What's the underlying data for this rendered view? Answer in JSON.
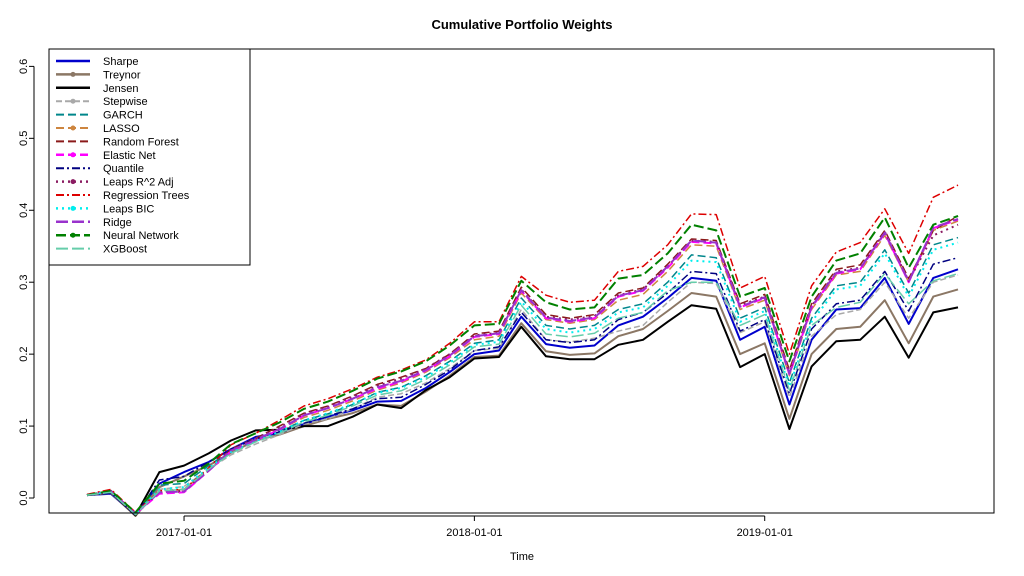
{
  "chart_data": {
    "type": "line",
    "title": "Cumulative Portfolio Weights",
    "xlabel": "Time",
    "ylabel": "",
    "x": [
      "2016-09-01",
      "2016-10-01",
      "2016-11-01",
      "2016-12-01",
      "2017-01-01",
      "2017-02-01",
      "2017-03-01",
      "2017-04-01",
      "2017-05-01",
      "2017-06-01",
      "2017-07-01",
      "2017-08-01",
      "2017-09-01",
      "2017-10-01",
      "2017-11-01",
      "2017-12-01",
      "2018-01-01",
      "2018-02-01",
      "2018-03-01",
      "2018-04-01",
      "2018-05-01",
      "2018-06-01",
      "2018-07-01",
      "2018-08-01",
      "2018-09-01",
      "2018-10-01",
      "2018-11-01",
      "2018-12-01",
      "2019-01-01",
      "2019-02-01",
      "2019-03-01",
      "2019-04-01",
      "2019-05-01",
      "2019-06-01",
      "2019-07-01",
      "2019-08-01",
      "2019-09-01"
    ],
    "xticks": [
      "2017-01-01",
      "2018-01-01",
      "2019-01-01"
    ],
    "ylim": [
      -0.025,
      0.62
    ],
    "yticks": [
      0.0,
      0.1,
      0.2,
      0.3,
      0.4,
      0.5,
      0.6
    ],
    "ytick_labels": [
      "0.0",
      "0.1",
      "0.2",
      "0.3",
      "0.4",
      "0.5",
      "0.6"
    ],
    "legend_position": "top-left",
    "series": [
      {
        "name": "Sharpe",
        "color": "#0000cc",
        "dash": "",
        "width": 2,
        "marker": "",
        "values": [
          0.004,
          0.006,
          -0.024,
          0.02,
          0.036,
          0.05,
          0.068,
          0.085,
          0.09,
          0.103,
          0.113,
          0.122,
          0.134,
          0.135,
          0.153,
          0.175,
          0.2,
          0.205,
          0.252,
          0.214,
          0.209,
          0.212,
          0.24,
          0.252,
          0.278,
          0.306,
          0.302,
          0.22,
          0.238,
          0.13,
          0.22,
          0.262,
          0.264,
          0.306,
          0.242,
          0.306,
          0.318
        ]
      },
      {
        "name": "Treynor",
        "color": "#8b7765",
        "dash": "",
        "width": 2,
        "marker": "dot",
        "values": [
          0.004,
          0.007,
          -0.025,
          0.015,
          0.03,
          0.045,
          0.063,
          0.08,
          0.088,
          0.1,
          0.11,
          0.118,
          0.13,
          0.128,
          0.148,
          0.17,
          0.196,
          0.198,
          0.243,
          0.204,
          0.199,
          0.201,
          0.225,
          0.235,
          0.26,
          0.285,
          0.28,
          0.2,
          0.215,
          0.11,
          0.2,
          0.235,
          0.238,
          0.275,
          0.215,
          0.28,
          0.29
        ]
      },
      {
        "name": "Jensen",
        "color": "#000000",
        "dash": "",
        "width": 2,
        "marker": "",
        "values": [
          0.004,
          0.008,
          -0.024,
          0.036,
          0.045,
          0.062,
          0.08,
          0.094,
          0.095,
          0.1,
          0.1,
          0.113,
          0.13,
          0.125,
          0.15,
          0.168,
          0.194,
          0.196,
          0.238,
          0.197,
          0.193,
          0.193,
          0.213,
          0.22,
          0.245,
          0.268,
          0.263,
          0.182,
          0.2,
          0.096,
          0.183,
          0.218,
          0.22,
          0.252,
          0.195,
          0.258,
          0.265
        ]
      },
      {
        "name": "Stepwise",
        "color": "#a9a9a9",
        "dash": "6,3",
        "width": 1.5,
        "marker": "dot",
        "values": [
          0.004,
          0.008,
          -0.023,
          0.012,
          0.016,
          0.04,
          0.06,
          0.075,
          0.088,
          0.103,
          0.11,
          0.124,
          0.14,
          0.145,
          0.16,
          0.18,
          0.205,
          0.208,
          0.262,
          0.22,
          0.217,
          0.222,
          0.232,
          0.24,
          0.272,
          0.3,
          0.298,
          0.23,
          0.245,
          0.14,
          0.225,
          0.255,
          0.262,
          0.3,
          0.25,
          0.3,
          0.31
        ]
      },
      {
        "name": "GARCH",
        "color": "#00868b",
        "dash": "8,4",
        "width": 1.5,
        "marker": "",
        "values": [
          0.004,
          0.009,
          -0.022,
          0.018,
          0.02,
          0.045,
          0.066,
          0.082,
          0.093,
          0.108,
          0.117,
          0.13,
          0.147,
          0.154,
          0.17,
          0.19,
          0.215,
          0.22,
          0.278,
          0.24,
          0.235,
          0.24,
          0.262,
          0.27,
          0.3,
          0.338,
          0.334,
          0.25,
          0.265,
          0.16,
          0.25,
          0.295,
          0.3,
          0.345,
          0.285,
          0.352,
          0.362
        ]
      },
      {
        "name": "LASSO",
        "color": "#cd853f",
        "dash": "8,4",
        "width": 1.5,
        "marker": "dot",
        "values": [
          0.004,
          0.009,
          -0.022,
          0.01,
          0.012,
          0.04,
          0.065,
          0.08,
          0.095,
          0.112,
          0.122,
          0.135,
          0.15,
          0.16,
          0.175,
          0.195,
          0.22,
          0.225,
          0.285,
          0.248,
          0.243,
          0.248,
          0.275,
          0.283,
          0.315,
          0.352,
          0.35,
          0.262,
          0.275,
          0.17,
          0.262,
          0.31,
          0.315,
          0.365,
          0.3,
          0.372,
          0.385
        ]
      },
      {
        "name": "Random Forest",
        "color": "#8b1a1a",
        "dash": "8,4",
        "width": 1.5,
        "marker": "",
        "values": [
          0.004,
          0.01,
          -0.021,
          0.008,
          0.008,
          0.038,
          0.068,
          0.083,
          0.1,
          0.118,
          0.128,
          0.142,
          0.158,
          0.168,
          0.18,
          0.2,
          0.228,
          0.232,
          0.293,
          0.255,
          0.25,
          0.255,
          0.285,
          0.292,
          0.325,
          0.36,
          0.358,
          0.27,
          0.283,
          0.178,
          0.27,
          0.318,
          0.324,
          0.372,
          0.305,
          0.372,
          0.392
        ]
      },
      {
        "name": "Elastic Net",
        "color": "#ff00ff",
        "dash": "8,4",
        "width": 2,
        "marker": "dot",
        "values": [
          0.004,
          0.009,
          -0.022,
          0.006,
          0.008,
          0.038,
          0.065,
          0.08,
          0.095,
          0.115,
          0.125,
          0.138,
          0.152,
          0.162,
          0.177,
          0.197,
          0.224,
          0.228,
          0.288,
          0.25,
          0.245,
          0.25,
          0.28,
          0.288,
          0.32,
          0.356,
          0.354,
          0.265,
          0.278,
          0.172,
          0.265,
          0.312,
          0.318,
          0.368,
          0.3,
          0.375,
          0.387
        ]
      },
      {
        "name": "Quantile",
        "color": "#000080",
        "dash": "8,3,2,3",
        "width": 1.5,
        "marker": "",
        "values": [
          0.004,
          0.007,
          -0.024,
          0.025,
          0.03,
          0.05,
          0.068,
          0.082,
          0.092,
          0.104,
          0.114,
          0.124,
          0.138,
          0.14,
          0.158,
          0.178,
          0.205,
          0.21,
          0.258,
          0.22,
          0.216,
          0.22,
          0.248,
          0.258,
          0.285,
          0.315,
          0.312,
          0.232,
          0.248,
          0.145,
          0.235,
          0.27,
          0.275,
          0.315,
          0.26,
          0.325,
          0.334
        ]
      },
      {
        "name": "Leaps R^2 Adj",
        "color": "#8b1c62",
        "dash": "2,4",
        "width": 2,
        "marker": "dot",
        "values": [
          0.004,
          0.01,
          -0.021,
          0.008,
          0.01,
          0.04,
          0.068,
          0.083,
          0.098,
          0.117,
          0.127,
          0.141,
          0.156,
          0.166,
          0.18,
          0.2,
          0.226,
          0.23,
          0.29,
          0.252,
          0.248,
          0.253,
          0.282,
          0.29,
          0.322,
          0.358,
          0.356,
          0.268,
          0.28,
          0.175,
          0.267,
          0.315,
          0.32,
          0.37,
          0.302,
          0.365,
          0.38
        ]
      },
      {
        "name": "Regression Trees",
        "color": "#dd0000",
        "dash": "8,3,2,3",
        "width": 1.5,
        "marker": "",
        "values": [
          0.005,
          0.012,
          -0.02,
          0.01,
          0.012,
          0.042,
          0.074,
          0.09,
          0.108,
          0.128,
          0.138,
          0.152,
          0.168,
          0.178,
          0.192,
          0.215,
          0.245,
          0.245,
          0.308,
          0.282,
          0.272,
          0.275,
          0.315,
          0.322,
          0.352,
          0.395,
          0.394,
          0.292,
          0.308,
          0.2,
          0.295,
          0.342,
          0.355,
          0.402,
          0.34,
          0.418,
          0.435
        ]
      },
      {
        "name": "Leaps BIC",
        "color": "#00eeee",
        "dash": "2,4",
        "width": 2,
        "marker": "dot",
        "values": [
          0.004,
          0.009,
          -0.022,
          0.012,
          0.015,
          0.042,
          0.064,
          0.079,
          0.092,
          0.108,
          0.118,
          0.131,
          0.146,
          0.153,
          0.168,
          0.188,
          0.213,
          0.217,
          0.273,
          0.235,
          0.23,
          0.235,
          0.258,
          0.265,
          0.295,
          0.33,
          0.328,
          0.245,
          0.26,
          0.155,
          0.245,
          0.29,
          0.295,
          0.34,
          0.28,
          0.345,
          0.355
        ]
      },
      {
        "name": "Ridge",
        "color": "#9932cc",
        "dash": "12,4",
        "width": 2,
        "marker": "",
        "values": [
          0.004,
          0.009,
          -0.022,
          0.008,
          0.009,
          0.038,
          0.066,
          0.081,
          0.096,
          0.115,
          0.125,
          0.138,
          0.154,
          0.163,
          0.178,
          0.198,
          0.225,
          0.229,
          0.289,
          0.251,
          0.246,
          0.251,
          0.281,
          0.289,
          0.322,
          0.358,
          0.355,
          0.266,
          0.279,
          0.173,
          0.266,
          0.313,
          0.319,
          0.369,
          0.301,
          0.376,
          0.388
        ]
      },
      {
        "name": "Neural Network",
        "color": "#008000",
        "dash": "10,4",
        "width": 2,
        "marker": "dot",
        "values": [
          0.004,
          0.01,
          -0.02,
          0.02,
          0.024,
          0.048,
          0.075,
          0.09,
          0.105,
          0.124,
          0.134,
          0.149,
          0.166,
          0.176,
          0.19,
          0.212,
          0.24,
          0.242,
          0.302,
          0.272,
          0.262,
          0.265,
          0.305,
          0.31,
          0.34,
          0.38,
          0.372,
          0.28,
          0.292,
          0.19,
          0.28,
          0.33,
          0.34,
          0.39,
          0.32,
          0.38,
          0.392
        ]
      },
      {
        "name": "XGBoost",
        "color": "#66cdaa",
        "dash": "12,4",
        "width": 1.5,
        "marker": "",
        "values": [
          0.004,
          0.008,
          -0.023,
          0.01,
          0.012,
          0.04,
          0.062,
          0.078,
          0.09,
          0.106,
          0.115,
          0.128,
          0.143,
          0.149,
          0.165,
          0.185,
          0.21,
          0.214,
          0.268,
          0.228,
          0.224,
          0.229,
          0.25,
          0.258,
          0.288,
          0.3,
          0.3,
          0.24,
          0.255,
          0.15,
          0.24,
          0.265,
          0.272,
          0.312,
          0.27,
          0.302,
          0.312
        ]
      }
    ]
  }
}
